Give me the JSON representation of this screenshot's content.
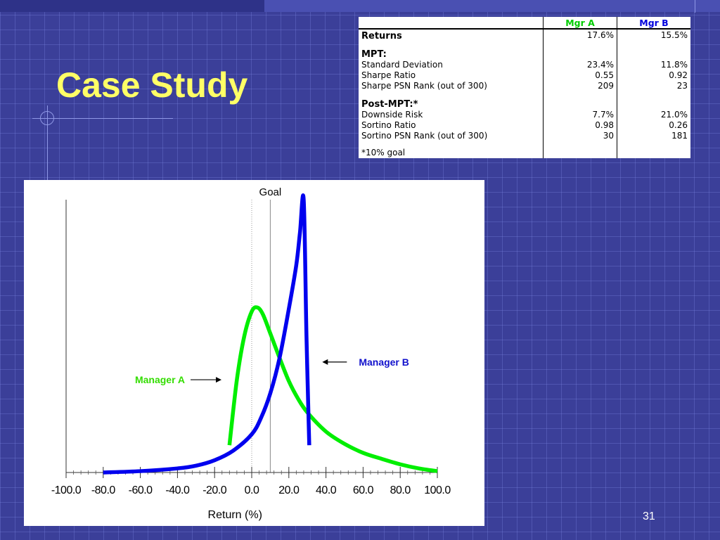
{
  "slide": {
    "title": "Case Study",
    "page_number": "31"
  },
  "table": {
    "headers": [
      "",
      "Mgr A",
      "Mgr B"
    ],
    "header_colors": {
      "mgr_a": "#00cc00",
      "mgr_b": "#0000dd"
    },
    "rows": [
      {
        "label": "Returns",
        "a": "17.6%",
        "b": "15.5%",
        "style": "section"
      },
      {
        "label": "",
        "a": "",
        "b": "",
        "style": "spacer"
      },
      {
        "label": "MPT:",
        "a": "",
        "b": "",
        "style": "section"
      },
      {
        "label": "Standard Deviation",
        "a": "23.4%",
        "b": "11.8%",
        "style": "normal"
      },
      {
        "label": "Sharpe Ratio",
        "a": "0.55",
        "b": "0.92",
        "style": "normal"
      },
      {
        "label": "Sharpe PSN Rank (out of 300)",
        "a": "209",
        "b": "23",
        "style": "normal"
      },
      {
        "label": "",
        "a": "",
        "b": "",
        "style": "spacer"
      },
      {
        "label": "Post-MPT:*",
        "a": "",
        "b": "",
        "style": "section"
      },
      {
        "label": "Downside Risk",
        "a": "7.7%",
        "b": "21.0%",
        "style": "normal"
      },
      {
        "label": "Sortino Ratio",
        "a": "0.98",
        "b": "0.26",
        "style": "normal"
      },
      {
        "label": "Sortino PSN Rank (out of 300)",
        "a": "30",
        "b": "181",
        "style": "normal"
      },
      {
        "label": "",
        "a": "",
        "b": "",
        "style": "spacer"
      },
      {
        "label": "*10% goal",
        "a": "",
        "b": "",
        "style": "normal"
      }
    ]
  },
  "chart_data": {
    "type": "line",
    "title": "",
    "xlabel": "Return (%)",
    "ylabel": "",
    "xlim": [
      -100,
      100
    ],
    "ylim": [
      0,
      1
    ],
    "x_ticks": [
      -100,
      -80,
      -60,
      -40,
      -20,
      0,
      20,
      40,
      60,
      80,
      100
    ],
    "x_tick_labels": [
      "-100.0",
      "-80.0",
      "-60.0",
      "-40.0",
      "-20.0",
      "0.0",
      "20.0",
      "40.0",
      "60.0",
      "80.0",
      "100.0"
    ],
    "grid": false,
    "goal": {
      "label": "Goal",
      "x": 10
    },
    "zero_line": {
      "x": 0
    },
    "series": [
      {
        "name": "Manager A",
        "color": "#00ee00",
        "points": [
          [
            -12,
            0.1
          ],
          [
            -8,
            0.34
          ],
          [
            -4,
            0.5
          ],
          [
            0,
            0.59
          ],
          [
            3,
            0.605
          ],
          [
            6,
            0.58
          ],
          [
            10,
            0.51
          ],
          [
            15,
            0.42
          ],
          [
            20,
            0.335
          ],
          [
            25,
            0.27
          ],
          [
            30,
            0.22
          ],
          [
            40,
            0.15
          ],
          [
            50,
            0.105
          ],
          [
            60,
            0.072
          ],
          [
            70,
            0.05
          ],
          [
            80,
            0.03
          ],
          [
            90,
            0.015
          ],
          [
            100,
            0.005
          ]
        ]
      },
      {
        "name": "Manager B",
        "color": "#0000ee",
        "points": [
          [
            -80,
            0.0
          ],
          [
            -60,
            0.005
          ],
          [
            -40,
            0.015
          ],
          [
            -30,
            0.025
          ],
          [
            -20,
            0.045
          ],
          [
            -10,
            0.08
          ],
          [
            0,
            0.14
          ],
          [
            5,
            0.2
          ],
          [
            10,
            0.29
          ],
          [
            15,
            0.42
          ],
          [
            20,
            0.6
          ],
          [
            24,
            0.76
          ],
          [
            26,
            0.88
          ],
          [
            28,
            1.0
          ],
          [
            29.5,
            0.5
          ],
          [
            31,
            0.1
          ]
        ]
      }
    ],
    "annotations": [
      {
        "text": "Manager A",
        "color": "#33dd00",
        "target_series": "Manager A",
        "arrow": "right"
      },
      {
        "text": "Manager B",
        "color": "#1111cc",
        "target_series": "Manager B",
        "arrow": "left"
      }
    ]
  }
}
